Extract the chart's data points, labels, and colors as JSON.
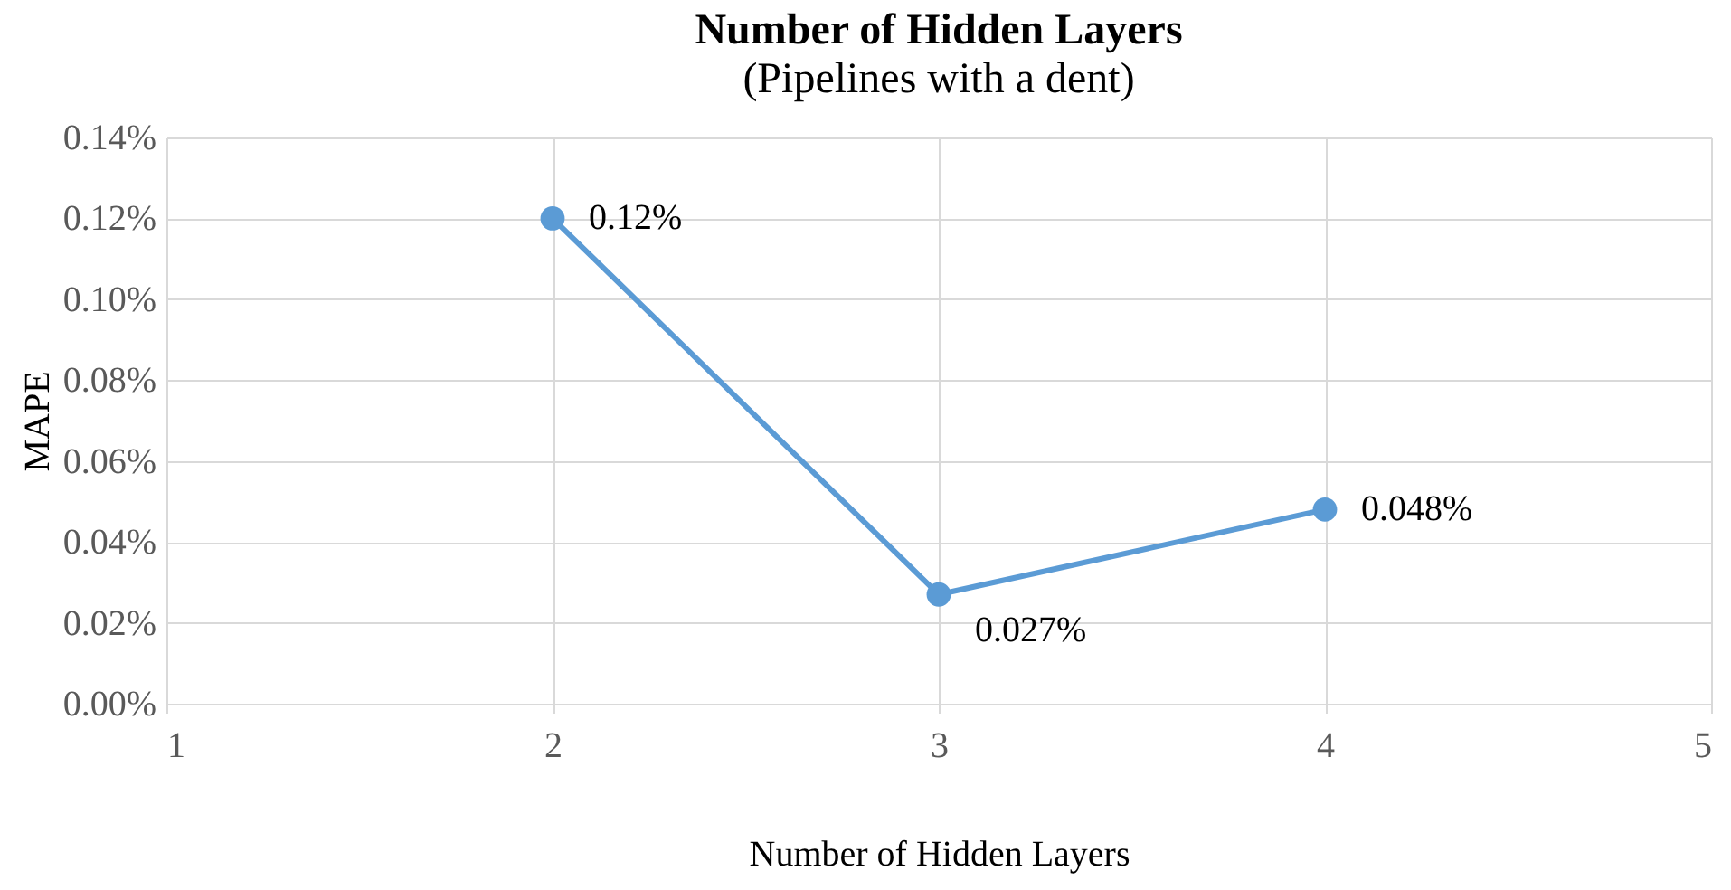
{
  "chart_data": {
    "type": "line",
    "title": "Number of Hidden Layers",
    "subtitle": "(Pipelines with a dent)",
    "xlabel": "Number of Hidden Layers",
    "ylabel": "MAPE",
    "x": [
      2,
      3,
      4
    ],
    "series": [
      {
        "color": "#5b9bd5",
        "values": [
          0.12,
          0.027,
          0.048
        ]
      }
    ],
    "value_labels": [
      "0.12%",
      "0.027%",
      "0.048%"
    ],
    "xlim": [
      1,
      5
    ],
    "xticks": [
      1,
      2,
      3,
      4,
      5
    ],
    "ylim": [
      0,
      0.14
    ],
    "yticks": [
      {
        "value": 0,
        "label": "0.00%"
      },
      {
        "value": 0.02,
        "label": "0.02%"
      },
      {
        "value": 0.04,
        "label": "0.04%"
      },
      {
        "value": 0.06,
        "label": "0.06%"
      },
      {
        "value": 0.08,
        "label": "0.08%"
      },
      {
        "value": 0.1,
        "label": "0.10%"
      },
      {
        "value": 0.12,
        "label": "0.12%"
      },
      {
        "value": 0.14,
        "label": "0.14%"
      }
    ],
    "grid": true,
    "marker": "circle",
    "line_style": "solid"
  }
}
